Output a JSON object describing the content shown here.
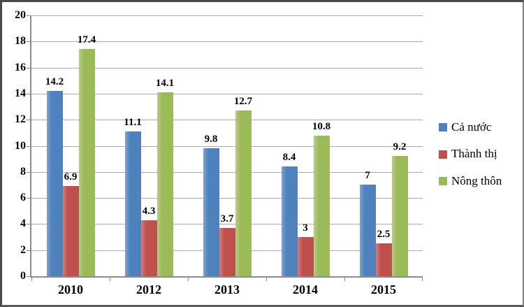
{
  "chart_data": {
    "type": "bar",
    "title": "",
    "categories": [
      "2010",
      "2012",
      "2013",
      "2014",
      "2015"
    ],
    "series": [
      {
        "name": "Cả nước",
        "color": "#4F81BD",
        "values": [
          14.2,
          11.1,
          9.8,
          8.4,
          7
        ]
      },
      {
        "name": "Thành thị",
        "color": "#C0504D",
        "values": [
          6.9,
          4.3,
          3.7,
          3,
          2.5
        ]
      },
      {
        "name": "Nông thôn",
        "color": "#9BBB59",
        "values": [
          17.4,
          14.1,
          12.7,
          10.8,
          9.2
        ]
      }
    ],
    "ylim": [
      0,
      20
    ],
    "yticks": [
      0,
      2,
      4,
      6,
      8,
      10,
      12,
      14,
      16,
      18,
      20
    ],
    "grid": true,
    "legend_position": "right",
    "value_labels_shown": true
  },
  "colors": {
    "gridline": "#a9a9a9",
    "axis": "#8c8c8c",
    "frame_border": "#4a4a4a",
    "background": "#ffffff",
    "text": "#000000"
  }
}
